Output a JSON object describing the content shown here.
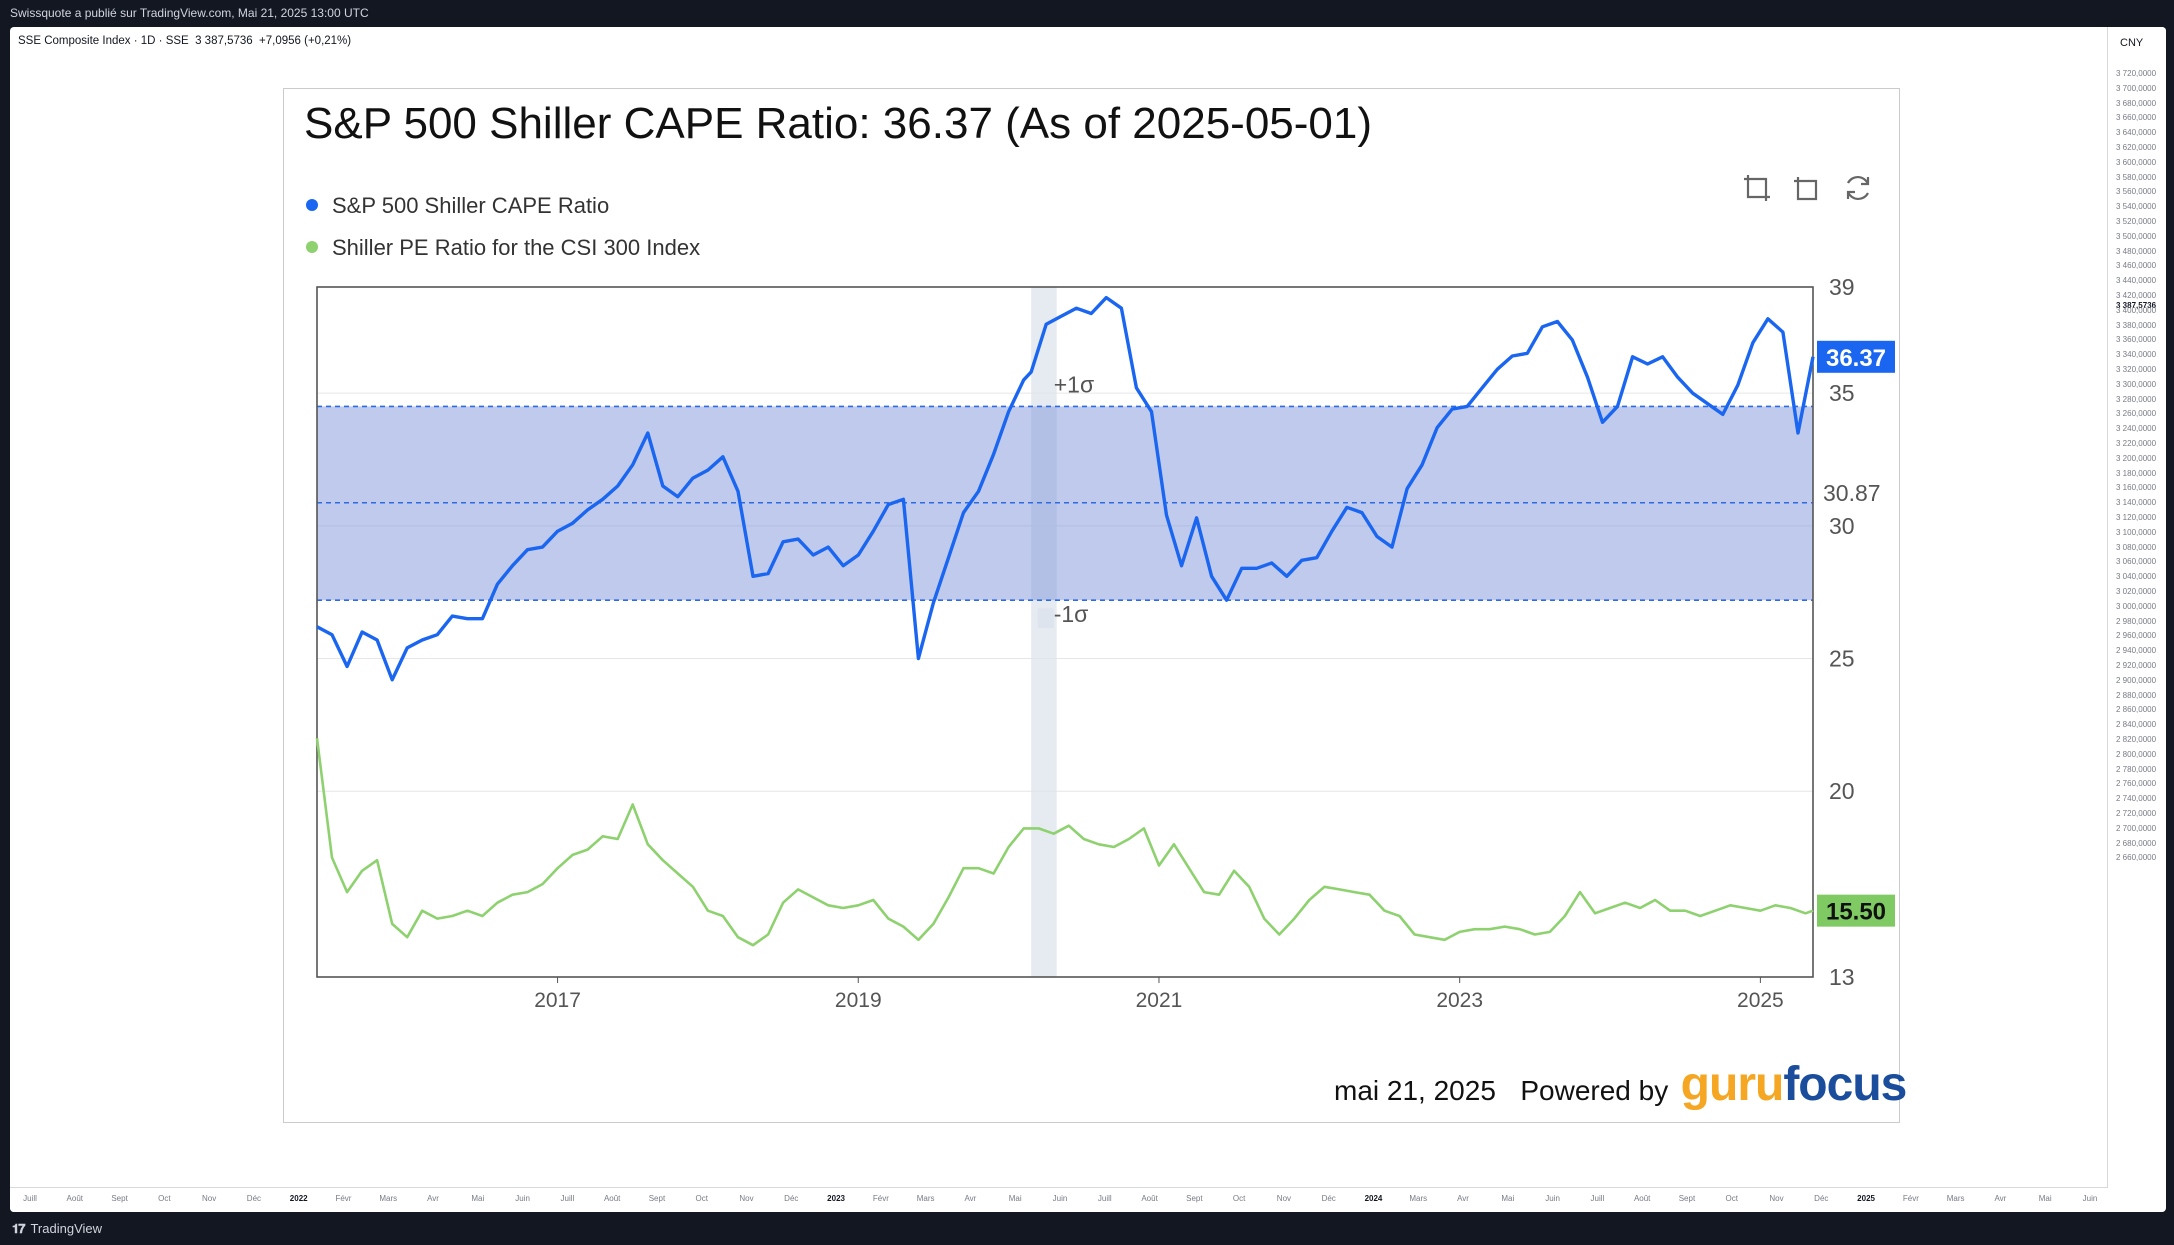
{
  "header": {
    "published": "Swissquote a publié sur TradingView.com, Mai 21, 2025 13:00 UTC"
  },
  "symbol": {
    "name": "SSE Composite Index",
    "interval": "1D",
    "exchange": "SSE",
    "price": "3 387,5736",
    "change": "+7,0956 (+0,21%)"
  },
  "price_axis": {
    "currency": "CNY",
    "ticks": [
      "3 720,0000",
      "3 700,0000",
      "3 680,0000",
      "3 660,0000",
      "3 640,0000",
      "3 620,0000",
      "3 600,0000",
      "3 580,0000",
      "3 560,0000",
      "3 540,0000",
      "3 520,0000",
      "3 500,0000",
      "3 480,0000",
      "3 460,0000",
      "3 440,0000",
      "3 420,0000",
      "3 400,0000",
      "3 380,0000",
      "3 360,0000",
      "3 340,0000",
      "3 320,0000",
      "3 300,0000",
      "3 280,0000",
      "3 260,0000",
      "3 240,0000",
      "3 220,0000",
      "3 200,0000",
      "3 180,0000",
      "3 160,0000",
      "3 140,0000",
      "3 120,0000",
      "3 100,0000",
      "3 080,0000",
      "3 060,0000",
      "3 040,0000",
      "3 020,0000",
      "3 000,0000",
      "2 980,0000",
      "2 960,0000",
      "2 940,0000",
      "2 920,0000",
      "2 900,0000",
      "2 880,0000",
      "2 860,0000",
      "2 840,0000",
      "2 820,0000",
      "2 800,0000",
      "2 780,0000",
      "2 760,0000",
      "2 740,0000",
      "2 720,0000",
      "2 700,0000",
      "2 680,0000",
      "2 660,0000"
    ],
    "last": "3 387,5736"
  },
  "time_axis": {
    "ticks": [
      {
        "t": "Juill",
        "b": false
      },
      {
        "t": "Août",
        "b": false
      },
      {
        "t": "Sept",
        "b": false
      },
      {
        "t": "Oct",
        "b": false
      },
      {
        "t": "Nov",
        "b": false
      },
      {
        "t": "Déc",
        "b": false
      },
      {
        "t": "2022",
        "b": true
      },
      {
        "t": "Févr",
        "b": false
      },
      {
        "t": "Mars",
        "b": false
      },
      {
        "t": "Avr",
        "b": false
      },
      {
        "t": "Mai",
        "b": false
      },
      {
        "t": "Juin",
        "b": false
      },
      {
        "t": "Juill",
        "b": false
      },
      {
        "t": "Août",
        "b": false
      },
      {
        "t": "Sept",
        "b": false
      },
      {
        "t": "Oct",
        "b": false
      },
      {
        "t": "Nov",
        "b": false
      },
      {
        "t": "Déc",
        "b": false
      },
      {
        "t": "2023",
        "b": true
      },
      {
        "t": "Févr",
        "b": false
      },
      {
        "t": "Mars",
        "b": false
      },
      {
        "t": "Avr",
        "b": false
      },
      {
        "t": "Mai",
        "b": false
      },
      {
        "t": "Juin",
        "b": false
      },
      {
        "t": "Juill",
        "b": false
      },
      {
        "t": "Août",
        "b": false
      },
      {
        "t": "Sept",
        "b": false
      },
      {
        "t": "Oct",
        "b": false
      },
      {
        "t": "Nov",
        "b": false
      },
      {
        "t": "Déc",
        "b": false
      },
      {
        "t": "2024",
        "b": true
      },
      {
        "t": "Mars",
        "b": false
      },
      {
        "t": "Avr",
        "b": false
      },
      {
        "t": "Mai",
        "b": false
      },
      {
        "t": "Juin",
        "b": false
      },
      {
        "t": "Juill",
        "b": false
      },
      {
        "t": "Août",
        "b": false
      },
      {
        "t": "Sept",
        "b": false
      },
      {
        "t": "Oct",
        "b": false
      },
      {
        "t": "Nov",
        "b": false
      },
      {
        "t": "Déc",
        "b": false
      },
      {
        "t": "2025",
        "b": true
      },
      {
        "t": "Févr",
        "b": false
      },
      {
        "t": "Mars",
        "b": false
      },
      {
        "t": "Avr",
        "b": false
      },
      {
        "t": "Mai",
        "b": false
      },
      {
        "t": "Juin",
        "b": false
      }
    ]
  },
  "branding": {
    "tradingview": "TradingView"
  },
  "card": {
    "footer_date": "mai 21, 2025",
    "powered_by": "Powered by",
    "guru": "guru",
    "focus": "focus"
  },
  "chart_data": {
    "type": "line",
    "title": "S&P 500 Shiller CAPE Ratio: 36.37 (As of 2025-05-01)",
    "xlabel": "",
    "ylabel": "",
    "x_range": [
      2015.4,
      2025.35
    ],
    "ylim": [
      13,
      39
    ],
    "x_ticks": [
      2017,
      2019,
      2021,
      2023,
      2025
    ],
    "y_ticks": [
      13,
      20,
      25,
      30,
      35,
      39
    ],
    "grid": true,
    "legend_position": "top-left",
    "mean": 30.87,
    "mean_label": "30.87",
    "band": [
      27.2,
      34.5
    ],
    "band_labels": [
      "+1σ",
      "-1σ"
    ],
    "shaded_x": [
      2020.15,
      2020.32
    ],
    "last_labels": [
      "36.37",
      "15.50"
    ],
    "series": [
      {
        "name": "S&P 500 Shiller CAPE Ratio",
        "color": "#1a66f0",
        "x": [
          2015.4,
          2015.5,
          2015.6,
          2015.7,
          2015.8,
          2015.9,
          2016.0,
          2016.1,
          2016.2,
          2016.3,
          2016.4,
          2016.5,
          2016.6,
          2016.7,
          2016.8,
          2016.9,
          2017.0,
          2017.1,
          2017.2,
          2017.3,
          2017.4,
          2017.5,
          2017.6,
          2017.7,
          2017.8,
          2017.9,
          2018.0,
          2018.1,
          2018.2,
          2018.3,
          2018.4,
          2018.5,
          2018.6,
          2018.7,
          2018.8,
          2018.9,
          2019.0,
          2019.1,
          2019.2,
          2019.3,
          2019.4,
          2019.5,
          2019.6,
          2019.7,
          2019.8,
          2019.9,
          2020.0,
          2020.1,
          2020.15,
          2020.25,
          2020.35,
          2020.45,
          2020.55,
          2020.65,
          2020.75,
          2020.85,
          2020.95,
          2021.05,
          2021.15,
          2021.25,
          2021.35,
          2021.45,
          2021.55,
          2021.65,
          2021.75,
          2021.85,
          2021.95,
          2022.05,
          2022.15,
          2022.25,
          2022.35,
          2022.45,
          2022.55,
          2022.65,
          2022.75,
          2022.85,
          2022.95,
          2023.05,
          2023.15,
          2023.25,
          2023.35,
          2023.45,
          2023.55,
          2023.65,
          2023.75,
          2023.85,
          2023.95,
          2024.05,
          2024.15,
          2024.25,
          2024.35,
          2024.45,
          2024.55,
          2024.65,
          2024.75,
          2024.85,
          2024.95,
          2025.05,
          2025.15,
          2025.25,
          2025.35
        ],
        "y": [
          26.2,
          25.9,
          24.7,
          26.0,
          25.7,
          24.2,
          25.4,
          25.7,
          25.9,
          26.6,
          26.5,
          26.5,
          27.8,
          28.5,
          29.1,
          29.2,
          29.8,
          30.1,
          30.6,
          31.0,
          31.5,
          32.3,
          33.5,
          31.5,
          31.1,
          31.8,
          32.1,
          32.6,
          31.3,
          28.1,
          28.2,
          29.4,
          29.5,
          28.9,
          29.2,
          28.5,
          28.9,
          29.8,
          30.8,
          31.0,
          25.0,
          27.1,
          28.8,
          30.5,
          31.3,
          32.7,
          34.3,
          35.5,
          35.8,
          37.6,
          37.9,
          38.2,
          38.0,
          38.6,
          38.2,
          35.2,
          34.3,
          30.4,
          28.5,
          30.3,
          28.1,
          27.2,
          28.4,
          28.4,
          28.6,
          28.1,
          28.7,
          28.8,
          29.8,
          30.7,
          30.5,
          29.6,
          29.2,
          31.4,
          32.3,
          33.7,
          34.4,
          34.5,
          35.2,
          35.9,
          36.4,
          36.5,
          37.5,
          37.7,
          37.0,
          35.6,
          33.9,
          34.5,
          36.37,
          36.1,
          36.37,
          35.6,
          35.0,
          34.6,
          34.2,
          35.3,
          36.9,
          37.8,
          37.3,
          33.5,
          36.37
        ]
      },
      {
        "name": "Shiller PE Ratio for the CSI 300 Index",
        "color": "#8ed16f",
        "x": [
          2015.4,
          2015.5,
          2015.6,
          2015.7,
          2015.8,
          2015.9,
          2016.0,
          2016.1,
          2016.2,
          2016.3,
          2016.4,
          2016.5,
          2016.6,
          2016.7,
          2016.8,
          2016.9,
          2017.0,
          2017.1,
          2017.2,
          2017.3,
          2017.4,
          2017.5,
          2017.6,
          2017.7,
          2017.8,
          2017.9,
          2018.0,
          2018.1,
          2018.2,
          2018.3,
          2018.4,
          2018.5,
          2018.6,
          2018.7,
          2018.8,
          2018.9,
          2019.0,
          2019.1,
          2019.2,
          2019.3,
          2019.4,
          2019.5,
          2019.6,
          2019.7,
          2019.8,
          2019.9,
          2020.0,
          2020.1,
          2020.2,
          2020.3,
          2020.4,
          2020.5,
          2020.6,
          2020.7,
          2020.8,
          2020.9,
          2021.0,
          2021.1,
          2021.2,
          2021.3,
          2021.4,
          2021.5,
          2021.6,
          2021.7,
          2021.8,
          2021.9,
          2022.0,
          2022.1,
          2022.2,
          2022.3,
          2022.4,
          2022.5,
          2022.6,
          2022.7,
          2022.8,
          2022.9,
          2023.0,
          2023.1,
          2023.2,
          2023.3,
          2023.4,
          2023.5,
          2023.6,
          2023.7,
          2023.8,
          2023.9,
          2024.0,
          2024.1,
          2024.2,
          2024.3,
          2024.4,
          2024.5,
          2024.6,
          2024.7,
          2024.8,
          2024.9,
          2025.0,
          2025.1,
          2025.2,
          2025.3,
          2025.35
        ],
        "y": [
          22.0,
          17.5,
          16.2,
          17.0,
          17.4,
          15.0,
          14.5,
          15.5,
          15.2,
          15.3,
          15.5,
          15.3,
          15.8,
          16.1,
          16.2,
          16.5,
          17.1,
          17.6,
          17.8,
          18.3,
          18.2,
          19.5,
          18.0,
          17.4,
          16.9,
          16.4,
          15.5,
          15.3,
          14.5,
          14.2,
          14.6,
          15.8,
          16.3,
          16.0,
          15.7,
          15.6,
          15.7,
          15.9,
          15.2,
          14.9,
          14.4,
          15.0,
          16.0,
          17.1,
          17.1,
          16.9,
          17.9,
          18.6,
          18.6,
          18.4,
          18.7,
          18.2,
          18.0,
          17.9,
          18.2,
          18.6,
          17.2,
          18.0,
          17.1,
          16.2,
          16.1,
          17.0,
          16.4,
          15.2,
          14.6,
          15.2,
          15.9,
          16.4,
          16.3,
          16.2,
          16.1,
          15.5,
          15.3,
          14.6,
          14.5,
          14.4,
          14.7,
          14.8,
          14.8,
          14.9,
          14.8,
          14.6,
          14.7,
          15.3,
          16.2,
          15.4,
          15.6,
          15.8,
          15.6,
          15.9,
          15.5,
          15.5,
          15.3,
          15.5,
          15.7,
          15.6,
          15.5,
          15.7,
          15.6,
          15.4,
          15.5
        ]
      }
    ]
  }
}
